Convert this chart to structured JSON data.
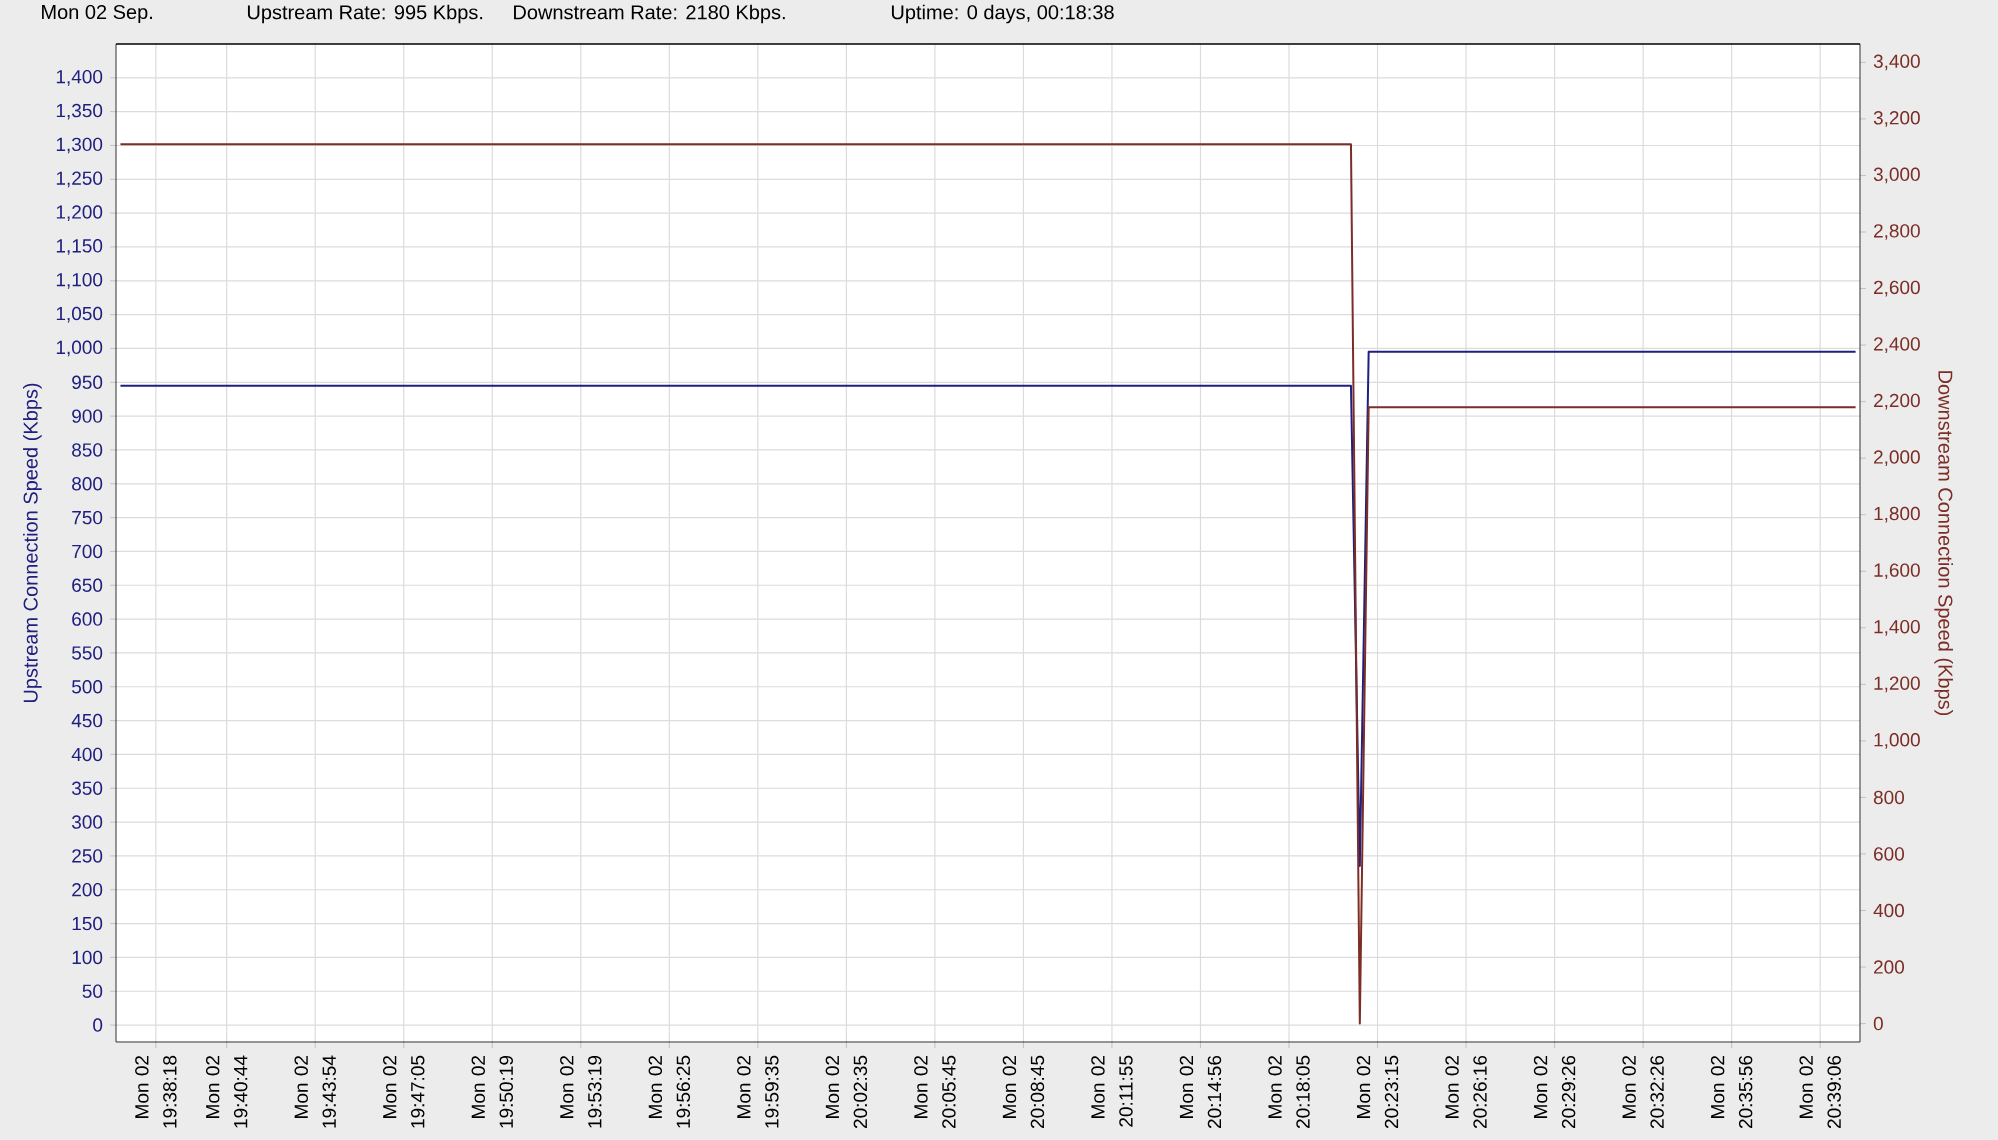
{
  "chart_data": {
    "type": "line",
    "title": "Mon 02 Sep.",
    "annotations": [
      "Upstream Rate: 995 Kbps.",
      "Downstream Rate: 2180 Kbps.",
      "Uptime: 0 days, 00:18:38"
    ],
    "ylabel": "Upstream Connection Speed (Kbps)",
    "y2label": "Downstream Connection Speed (Kbps)",
    "categories": [
      null,
      null,
      null,
      null,
      "Mon 02 19:38:18",
      null,
      null,
      null,
      null,
      null,
      null,
      null,
      "Mon 02 19:40:44",
      null,
      null,
      null,
      null,
      null,
      null,
      null,
      null,
      null,
      "Mon 02 19:43:54",
      null,
      null,
      null,
      null,
      null,
      null,
      null,
      null,
      null,
      "Mon 02 19:47:05",
      null,
      null,
      null,
      null,
      null,
      null,
      null,
      null,
      null,
      "Mon 02 19:50:19",
      null,
      null,
      null,
      null,
      null,
      null,
      null,
      null,
      null,
      "Mon 02 19:53:19",
      null,
      null,
      null,
      null,
      null,
      null,
      null,
      null,
      null,
      "Mon 02 19:56:25",
      null,
      null,
      null,
      null,
      null,
      null,
      null,
      null,
      null,
      "Mon 02 19:59:35",
      null,
      null,
      null,
      null,
      null,
      null,
      null,
      null,
      null,
      "Mon 02 20:02:35",
      null,
      null,
      null,
      null,
      null,
      null,
      null,
      null,
      null,
      "Mon 02 20:05:45",
      null,
      null,
      null,
      null,
      null,
      null,
      null,
      null,
      null,
      "Mon 02 20:08:45",
      null,
      null,
      null,
      null,
      null,
      null,
      null,
      null,
      null,
      "Mon 02 20:11:55",
      null,
      null,
      null,
      null,
      null,
      null,
      null,
      null,
      null,
      "Mon 02 20:14:56",
      null,
      null,
      null,
      null,
      null,
      null,
      null,
      null,
      null,
      "Mon 02 20:18:05",
      null,
      null,
      null,
      null,
      null,
      null,
      null,
      null,
      null,
      "Mon 02 20:23:15",
      null,
      null,
      null,
      null,
      null,
      null,
      null,
      null,
      null,
      "Mon 02 20:26:16",
      null,
      null,
      null,
      null,
      null,
      null,
      null,
      null,
      null,
      "Mon 02 20:29:26",
      null,
      null,
      null,
      null,
      null,
      null,
      null,
      null,
      null,
      "Mon 02 20:32:26",
      null,
      null,
      null,
      null,
      null,
      null,
      null,
      null,
      null,
      "Mon 02 20:35:56",
      null,
      null,
      null,
      null,
      null,
      null,
      null,
      null,
      null,
      "Mon 02 20:39:06",
      null,
      null,
      null,
      null
    ],
    "ylim": [
      -25,
      1450
    ],
    "yticks": [
      0,
      50,
      100,
      150,
      200,
      250,
      300,
      350,
      400,
      450,
      500,
      550,
      600,
      650,
      700,
      750,
      800,
      850,
      900,
      950,
      {
        "value": 1000,
        "label": "1,000"
      },
      {
        "value": 1050,
        "label": "1,050"
      },
      {
        "value": 1100,
        "label": "1,100"
      },
      {
        "value": 1150,
        "label": "1,150"
      },
      {
        "value": 1200,
        "label": "1,200"
      },
      {
        "value": 1250,
        "label": "1,250"
      },
      {
        "value": 1300,
        "label": "1,300"
      },
      {
        "value": 1350,
        "label": "1,350"
      },
      {
        "value": 1400,
        "label": "1,400"
      }
    ],
    "y2lim": [
      -65,
      3465
    ],
    "y2ticks": [
      0,
      200,
      400,
      600,
      800,
      {
        "value": 1000,
        "label": "1,000"
      },
      {
        "value": 1200,
        "label": "1,200"
      },
      {
        "value": 1400,
        "label": "1,400"
      },
      {
        "value": 1600,
        "label": "1,600"
      },
      {
        "value": 1800,
        "label": "1,800"
      },
      {
        "value": 2000,
        "label": "2,000"
      },
      {
        "value": 2200,
        "label": "2,200"
      },
      {
        "value": 2400,
        "label": "2,400"
      },
      {
        "value": 2600,
        "label": "2,600"
      },
      {
        "value": 2800,
        "label": "2,800"
      },
      {
        "value": 3000,
        "label": "3,000"
      },
      {
        "value": 3200,
        "label": "3,200"
      },
      {
        "value": 3400,
        "label": "3,400"
      }
    ],
    "grid": true,
    "series": [
      {
        "color": "#1f1f80",
        "values": [
          945,
          945,
          945,
          945,
          945,
          945,
          945,
          945,
          945,
          945,
          945,
          945,
          945,
          945,
          945,
          945,
          945,
          945,
          945,
          945,
          945,
          945,
          945,
          945,
          945,
          945,
          945,
          945,
          945,
          945,
          945,
          945,
          945,
          945,
          945,
          945,
          945,
          945,
          945,
          945,
          945,
          945,
          945,
          945,
          945,
          945,
          945,
          945,
          945,
          945,
          945,
          945,
          945,
          945,
          945,
          945,
          945,
          945,
          945,
          945,
          945,
          945,
          945,
          945,
          945,
          945,
          945,
          945,
          945,
          945,
          945,
          945,
          945,
          945,
          945,
          945,
          945,
          945,
          945,
          945,
          945,
          945,
          945,
          945,
          945,
          945,
          945,
          945,
          945,
          945,
          945,
          945,
          945,
          945,
          945,
          945,
          945,
          945,
          945,
          945,
          945,
          945,
          945,
          945,
          945,
          945,
          945,
          945,
          945,
          945,
          945,
          945,
          945,
          945,
          945,
          945,
          945,
          945,
          945,
          945,
          945,
          945,
          945,
          945,
          945,
          945,
          945,
          945,
          945,
          945,
          945,
          945,
          945,
          945,
          945,
          945,
          945,
          945,
          945,
          945,
          235,
          995,
          995,
          995,
          995,
          995,
          995,
          995,
          995,
          995,
          995,
          995,
          995,
          995,
          995,
          995,
          995,
          995,
          995,
          995,
          995,
          995,
          995,
          995,
          995,
          995,
          995,
          995,
          995,
          995,
          995,
          995,
          995,
          995,
          995,
          995,
          995,
          995,
          995,
          995,
          995,
          995,
          995,
          995,
          995,
          995,
          995,
          995,
          995,
          995,
          995,
          995,
          995,
          995,
          995,
          995,
          995
        ]
      },
      {
        "color": "#7b2d26",
        "axis": "y2",
        "values": [
          3110,
          3110,
          3110,
          3110,
          3110,
          3110,
          3110,
          3110,
          3110,
          3110,
          3110,
          3110,
          3110,
          3110,
          3110,
          3110,
          3110,
          3110,
          3110,
          3110,
          3110,
          3110,
          3110,
          3110,
          3110,
          3110,
          3110,
          3110,
          3110,
          3110,
          3110,
          3110,
          3110,
          3110,
          3110,
          3110,
          3110,
          3110,
          3110,
          3110,
          3110,
          3110,
          3110,
          3110,
          3110,
          3110,
          3110,
          3110,
          3110,
          3110,
          3110,
          3110,
          3110,
          3110,
          3110,
          3110,
          3110,
          3110,
          3110,
          3110,
          3110,
          3110,
          3110,
          3110,
          3110,
          3110,
          3110,
          3110,
          3110,
          3110,
          3110,
          3110,
          3110,
          3110,
          3110,
          3110,
          3110,
          3110,
          3110,
          3110,
          3110,
          3110,
          3110,
          3110,
          3110,
          3110,
          3110,
          3110,
          3110,
          3110,
          3110,
          3110,
          3110,
          3110,
          3110,
          3110,
          3110,
          3110,
          3110,
          3110,
          3110,
          3110,
          3110,
          3110,
          3110,
          3110,
          3110,
          3110,
          3110,
          3110,
          3110,
          3110,
          3110,
          3110,
          3110,
          3110,
          3110,
          3110,
          3110,
          3110,
          3110,
          3110,
          3110,
          3110,
          3110,
          3110,
          3110,
          3110,
          3110,
          3110,
          3110,
          3110,
          3110,
          3110,
          3110,
          3110,
          3110,
          3110,
          3110,
          3110,
          0,
          2180,
          2180,
          2180,
          2180,
          2180,
          2180,
          2180,
          2180,
          2180,
          2180,
          2180,
          2180,
          2180,
          2180,
          2180,
          2180,
          2180,
          2180,
          2180,
          2180,
          2180,
          2180,
          2180,
          2180,
          2180,
          2180,
          2180,
          2180,
          2180,
          2180,
          2180,
          2180,
          2180,
          2180,
          2180,
          2180,
          2180,
          2180,
          2180,
          2180,
          2180,
          2180,
          2180,
          2180,
          2180,
          2180,
          2180,
          2180,
          2180,
          2180,
          2180,
          2180,
          2180,
          2180,
          2180,
          2180
        ]
      }
    ]
  }
}
